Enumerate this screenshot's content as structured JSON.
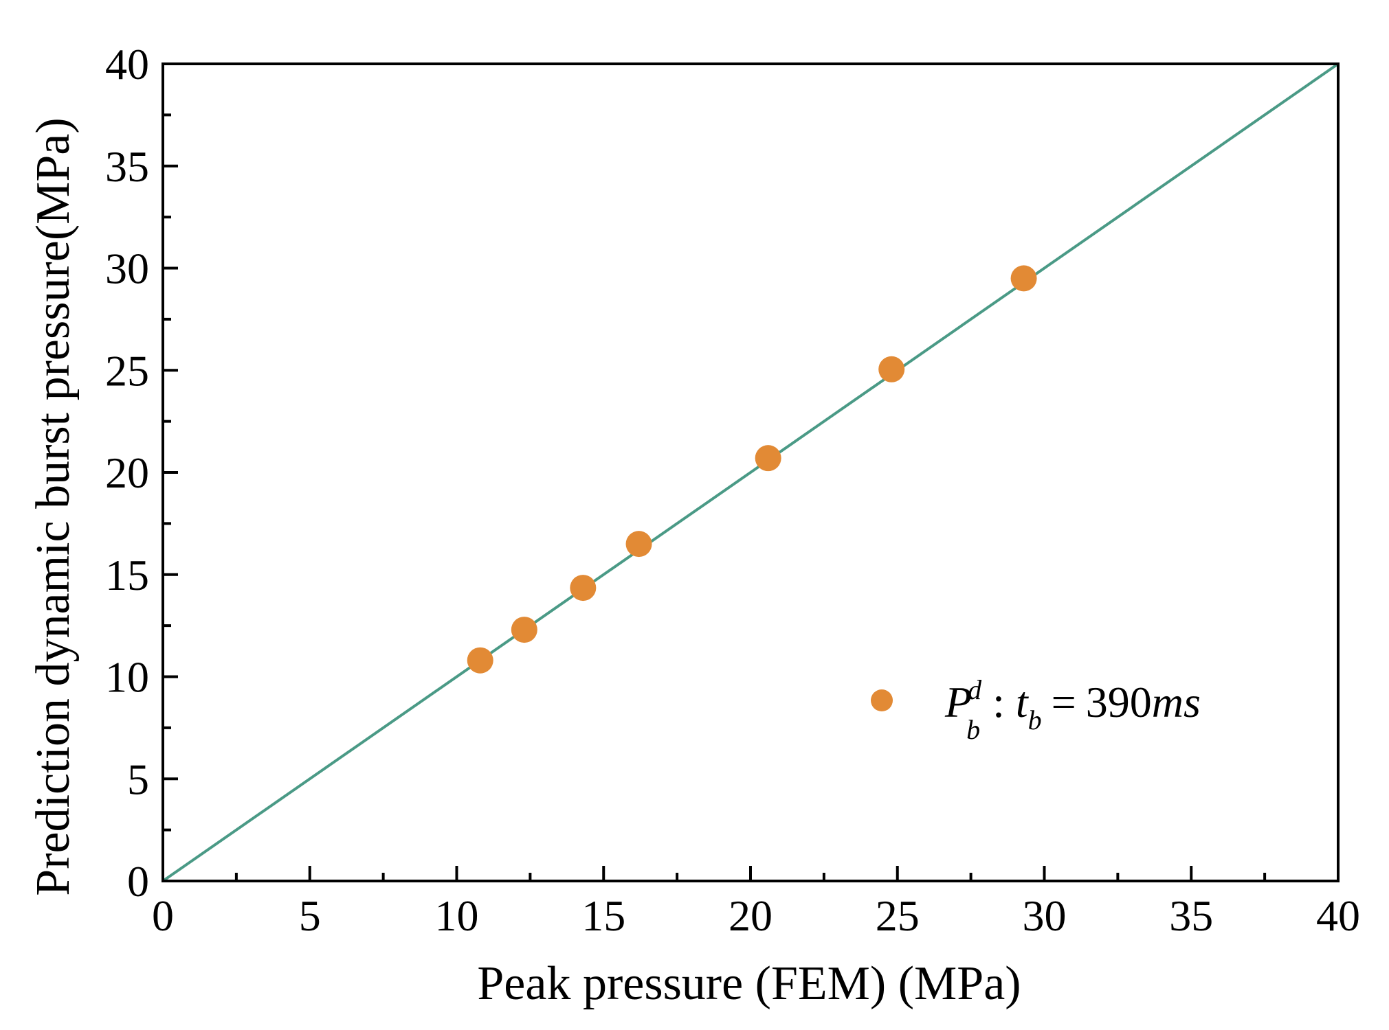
{
  "chart_data": {
    "type": "scatter",
    "xlabel": "Peak pressure (FEM) (MPa)",
    "ylabel": "Prediction dynamic burst pressure(MPa)",
    "xlim": [
      0,
      40
    ],
    "ylim": [
      0,
      40
    ],
    "x_ticks": [
      0,
      5,
      10,
      15,
      20,
      25,
      30,
      35,
      40
    ],
    "y_ticks": [
      0,
      5,
      10,
      15,
      20,
      25,
      30,
      35,
      40
    ],
    "x_tick_labels": [
      "0",
      "5",
      "10",
      "15",
      "20",
      "25",
      "30",
      "35",
      "40"
    ],
    "y_tick_labels": [
      "0",
      "5",
      "10",
      "15",
      "20",
      "25",
      "30",
      "35",
      "40"
    ],
    "reference_line": {
      "x": [
        0,
        40
      ],
      "y": [
        0,
        40
      ],
      "color": "#4a9a86"
    },
    "series": [
      {
        "name": "P_b^d : t_b = 390ms",
        "color": "#e28a35",
        "points": [
          {
            "x": 10.8,
            "y": 10.8
          },
          {
            "x": 12.3,
            "y": 12.3
          },
          {
            "x": 14.3,
            "y": 14.35
          },
          {
            "x": 16.2,
            "y": 16.5
          },
          {
            "x": 20.6,
            "y": 20.7
          },
          {
            "x": 24.8,
            "y": 25.05
          },
          {
            "x": 29.3,
            "y": 29.5
          }
        ]
      }
    ],
    "legend": {
      "position": "right",
      "symbol_main": "P",
      "symbol_sup": "d",
      "symbol_sub": "b",
      "separator": ":",
      "var_main": "t",
      "var_sub": "b",
      "equals": "=",
      "value": "390",
      "unit": "ms"
    }
  }
}
